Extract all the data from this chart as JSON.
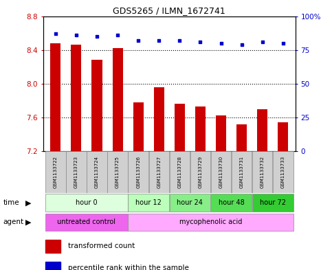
{
  "title": "GDS5265 / ILMN_1672741",
  "samples": [
    "GSM1133722",
    "GSM1133723",
    "GSM1133724",
    "GSM1133725",
    "GSM1133726",
    "GSM1133727",
    "GSM1133728",
    "GSM1133729",
    "GSM1133730",
    "GSM1133731",
    "GSM1133732",
    "GSM1133733"
  ],
  "bar_values": [
    8.48,
    8.46,
    8.28,
    8.42,
    7.78,
    7.96,
    7.76,
    7.73,
    7.62,
    7.52,
    7.7,
    7.54
  ],
  "dot_values": [
    87,
    86,
    85,
    86,
    82,
    82,
    82,
    81,
    80,
    79,
    81,
    80
  ],
  "bar_color": "#cc0000",
  "dot_color": "#0000cc",
  "ylim_left": [
    7.2,
    8.8
  ],
  "ylim_right": [
    0,
    100
  ],
  "yticks_left": [
    7.2,
    7.6,
    8.0,
    8.4,
    8.8
  ],
  "yticks_right": [
    0,
    25,
    50,
    75,
    100
  ],
  "ytick_labels_right": [
    "0",
    "25",
    "50",
    "75",
    "100%"
  ],
  "grid_values": [
    7.6,
    8.0,
    8.4
  ],
  "time_groups": [
    {
      "label": "hour 0",
      "start": 0,
      "end": 3,
      "color": "#ddffdd"
    },
    {
      "label": "hour 12",
      "start": 4,
      "end": 5,
      "color": "#bbffbb"
    },
    {
      "label": "hour 24",
      "start": 6,
      "end": 7,
      "color": "#88ee88"
    },
    {
      "label": "hour 48",
      "start": 8,
      "end": 9,
      "color": "#55dd55"
    },
    {
      "label": "hour 72",
      "start": 10,
      "end": 11,
      "color": "#33cc33"
    }
  ],
  "agent_groups": [
    {
      "label": "untreated control",
      "start": 0,
      "end": 3,
      "color": "#ee66ee"
    },
    {
      "label": "mycophenolic acid",
      "start": 4,
      "end": 11,
      "color": "#ffaaff"
    }
  ],
  "legend_bar_label": "transformed count",
  "legend_dot_label": "percentile rank within the sample",
  "time_label": "time",
  "agent_label": "agent",
  "background_color": "#ffffff",
  "plot_bg": "#ffffff",
  "bar_width": 0.5,
  "base_value": 7.2,
  "sample_box_color": "#d0d0d0"
}
